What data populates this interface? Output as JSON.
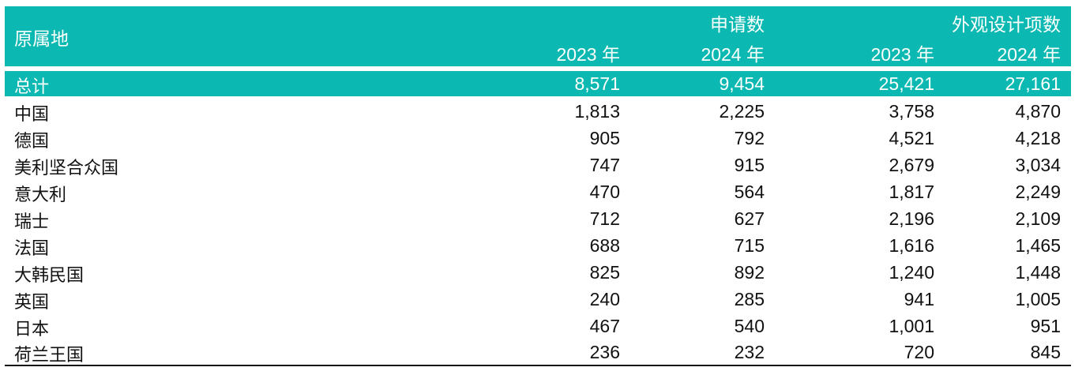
{
  "table": {
    "origin_header": "原属地",
    "groups": [
      "申请数",
      "外观设计项数"
    ],
    "years": [
      "2023 年",
      "2024 年",
      "2023 年",
      "2024 年"
    ],
    "total": {
      "label": "总计",
      "values": [
        "8,571",
        "9,454",
        "25,421",
        "27,161"
      ]
    },
    "rows": [
      {
        "label": "中国",
        "values": [
          "1,813",
          "2,225",
          "3,758",
          "4,870"
        ]
      },
      {
        "label": "德国",
        "values": [
          "905",
          "792",
          "4,521",
          "4,218"
        ]
      },
      {
        "label": "美利坚合众国",
        "values": [
          "747",
          "915",
          "2,679",
          "3,034"
        ]
      },
      {
        "label": "意大利",
        "values": [
          "470",
          "564",
          "1,817",
          "2,249"
        ]
      },
      {
        "label": "瑞士",
        "values": [
          "712",
          "627",
          "2,196",
          "2,109"
        ]
      },
      {
        "label": "法国",
        "values": [
          "688",
          "715",
          "1,616",
          "1,465"
        ]
      },
      {
        "label": "大韩民国",
        "values": [
          "825",
          "892",
          "1,240",
          "1,448"
        ]
      },
      {
        "label": "英国",
        "values": [
          "240",
          "285",
          "941",
          "1,005"
        ]
      },
      {
        "label": "日本",
        "values": [
          "467",
          "540",
          "1,001",
          "951"
        ]
      },
      {
        "label": "荷兰王国",
        "values": [
          "236",
          "232",
          "720",
          "845"
        ]
      }
    ]
  },
  "colors": {
    "header_bg": "#0BB9B2",
    "header_text": "#ffffff",
    "body_text": "#111111"
  }
}
